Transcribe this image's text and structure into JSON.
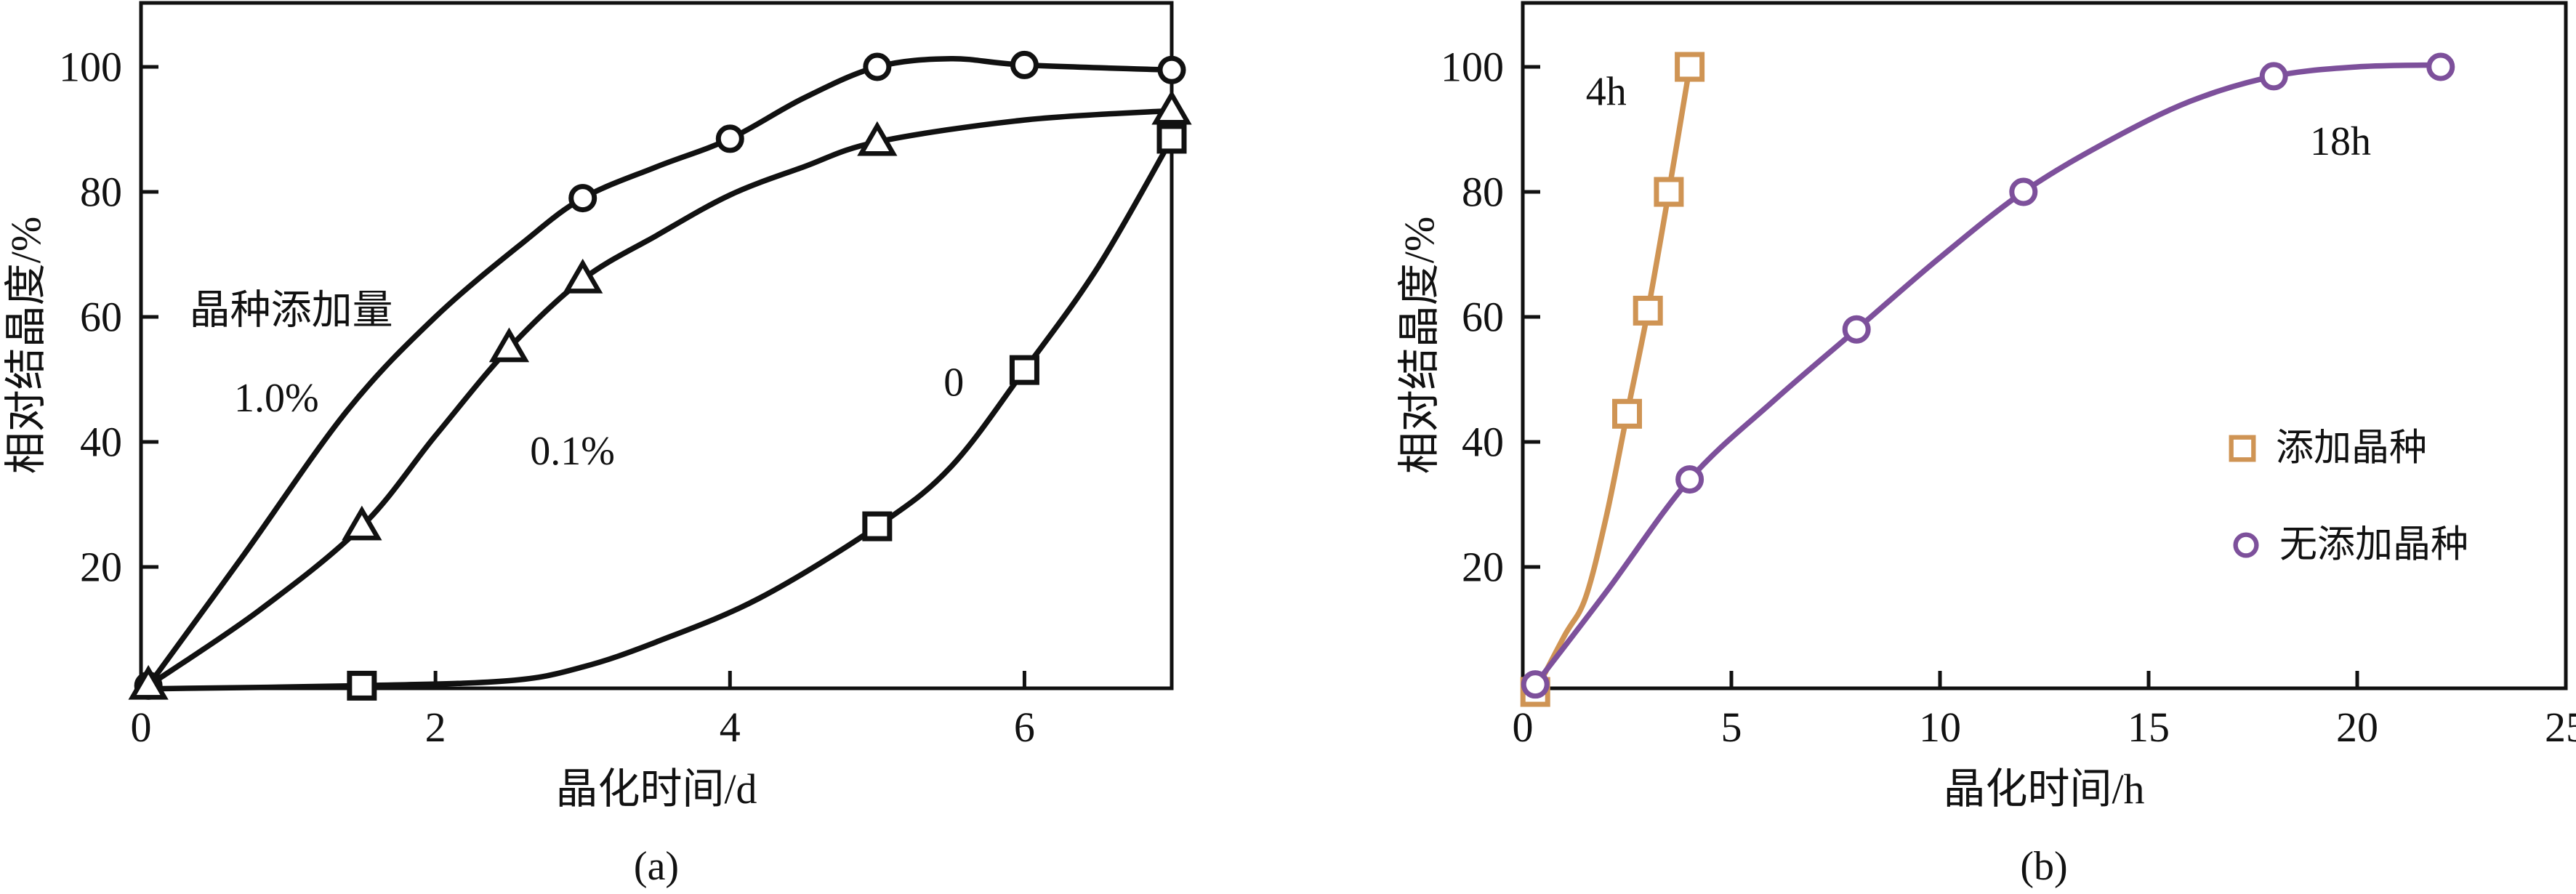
{
  "colors": {
    "background": "#ffffff",
    "black": "#111111",
    "seeded_tan": "#cf9454",
    "unseeded_purple": "#7d509b",
    "annotation_red": "#e62d23"
  },
  "chart_data": [
    {
      "id": "a",
      "type": "line",
      "caption": "(a)",
      "xlabel": "晶化时间/d",
      "ylabel": "相对结晶度/%",
      "xlim": [
        0,
        7
      ],
      "ylim": [
        0,
        110
      ],
      "grid": "off",
      "xtick_values": [
        0,
        2,
        4,
        6
      ],
      "xtick_labels": [
        "0",
        "2",
        "4",
        "6"
      ],
      "ytick_values": [
        20,
        40,
        60,
        80,
        100
      ],
      "ytick_labels": [
        "20",
        "40",
        "60",
        "80",
        "100"
      ],
      "series": [
        {
          "label": "1.0%",
          "marker": "circle",
          "color_key": "black",
          "points": [
            [
              0.05,
              1
            ],
            [
              3,
              79
            ],
            [
              4,
              88.5
            ],
            [
              5,
              100
            ],
            [
              6,
              100.3
            ],
            [
              7,
              99.5
            ]
          ],
          "curve": [
            [
              0.05,
              1
            ],
            [
              0.7,
              22
            ],
            [
              1.4,
              45
            ],
            [
              2,
              60
            ],
            [
              2.6,
              72
            ],
            [
              3,
              79
            ],
            [
              3.5,
              84
            ],
            [
              4,
              88.5
            ],
            [
              4.5,
              95
            ],
            [
              5,
              100
            ],
            [
              5.5,
              101.3
            ],
            [
              6,
              100.3
            ],
            [
              7,
              99.5
            ]
          ]
        },
        {
          "label": "0.1%",
          "marker": "triangle",
          "color_key": "black",
          "points": [
            [
              0.05,
              1
            ],
            [
              1.5,
              26.5
            ],
            [
              2.5,
              55
            ],
            [
              3,
              66
            ],
            [
              5,
              88
            ],
            [
              7,
              93
            ]
          ],
          "curve": [
            [
              0.05,
              1
            ],
            [
              0.8,
              13
            ],
            [
              1.5,
              26.5
            ],
            [
              2,
              41
            ],
            [
              2.5,
              55
            ],
            [
              3,
              66
            ],
            [
              3.5,
              73
            ],
            [
              4,
              79.5
            ],
            [
              4.5,
              84
            ],
            [
              5,
              88
            ],
            [
              6,
              91.5
            ],
            [
              7,
              93
            ]
          ]
        },
        {
          "label": "0",
          "marker": "square",
          "color_key": "black",
          "points": [
            [
              1.5,
              1
            ],
            [
              5,
              26.5
            ],
            [
              6,
              51.5
            ],
            [
              7,
              88.5
            ]
          ],
          "curve": [
            [
              0.05,
              0.5
            ],
            [
              1.5,
              1
            ],
            [
              2.5,
              1.8
            ],
            [
              3,
              4
            ],
            [
              3.5,
              8
            ],
            [
              4.2,
              15
            ],
            [
              5,
              26.5
            ],
            [
              5.5,
              36
            ],
            [
              6,
              51.5
            ],
            [
              6.5,
              68
            ],
            [
              7,
              88.5
            ]
          ]
        }
      ],
      "annotations": [
        {
          "text": "晶种添加量",
          "x": 1.02,
          "y": 61,
          "color_key": "black"
        },
        {
          "text": "1.0%",
          "x": 0.92,
          "y": 47,
          "color_key": "black"
        },
        {
          "text": "0.1%",
          "x": 2.93,
          "y": 38.5,
          "color_key": "black"
        },
        {
          "text": "0",
          "x": 5.52,
          "y": 49.5,
          "color_key": "black"
        }
      ],
      "legend": []
    },
    {
      "id": "b",
      "type": "line",
      "caption": "(b)",
      "xlabel": "晶化时间/h",
      "ylabel": "相对结晶度/%",
      "xlim": [
        0,
        25
      ],
      "ylim": [
        0,
        110
      ],
      "grid": "off",
      "xtick_values": [
        0,
        5,
        10,
        15,
        20,
        25
      ],
      "xtick_labels": [
        "0",
        "5",
        "10",
        "15",
        "20",
        "25"
      ],
      "ytick_values": [
        20,
        40,
        60,
        80,
        100
      ],
      "ytick_labels": [
        "20",
        "40",
        "60",
        "80",
        "100"
      ],
      "series": [
        {
          "label": "添加晶种",
          "marker": "square",
          "color_key": "seeded_tan",
          "points": [
            [
              0.3,
              0
            ],
            [
              2.5,
              44.5
            ],
            [
              3,
              61
            ],
            [
              3.5,
              80
            ],
            [
              4,
              100
            ]
          ],
          "curve": [
            [
              0.3,
              0
            ],
            [
              1,
              9
            ],
            [
              1.5,
              15
            ],
            [
              2,
              28
            ],
            [
              2.5,
              44.5
            ],
            [
              3,
              61
            ],
            [
              3.5,
              80
            ],
            [
              4,
              100
            ]
          ]
        },
        {
          "label": "无添加晶种",
          "marker": "circle",
          "color_key": "unseeded_purple",
          "points": [
            [
              0.3,
              1.2
            ],
            [
              4,
              34
            ],
            [
              8,
              58
            ],
            [
              12,
              80
            ],
            [
              18,
              98.5
            ],
            [
              22,
              100
            ]
          ],
          "curve": [
            [
              0.3,
              1.2
            ],
            [
              2,
              16
            ],
            [
              4,
              34
            ],
            [
              6,
              46.5
            ],
            [
              8,
              58
            ],
            [
              10,
              69.5
            ],
            [
              12,
              80
            ],
            [
              14,
              88
            ],
            [
              16,
              94.5
            ],
            [
              18,
              98.5
            ],
            [
              20,
              100
            ],
            [
              22,
              100.3
            ]
          ]
        }
      ],
      "annotations": [
        {
          "text": "4h",
          "x": 2.0,
          "y": 96,
          "color_key": "annotation_red"
        },
        {
          "text": "18h",
          "x": 19.6,
          "y": 88,
          "color_key": "annotation_red"
        }
      ],
      "legend": [
        {
          "label": "添加晶种",
          "marker": "square",
          "color_key": "seeded_tan"
        },
        {
          "label": "无添加晶种",
          "marker": "circle",
          "color_key": "unseeded_purple"
        }
      ]
    }
  ]
}
